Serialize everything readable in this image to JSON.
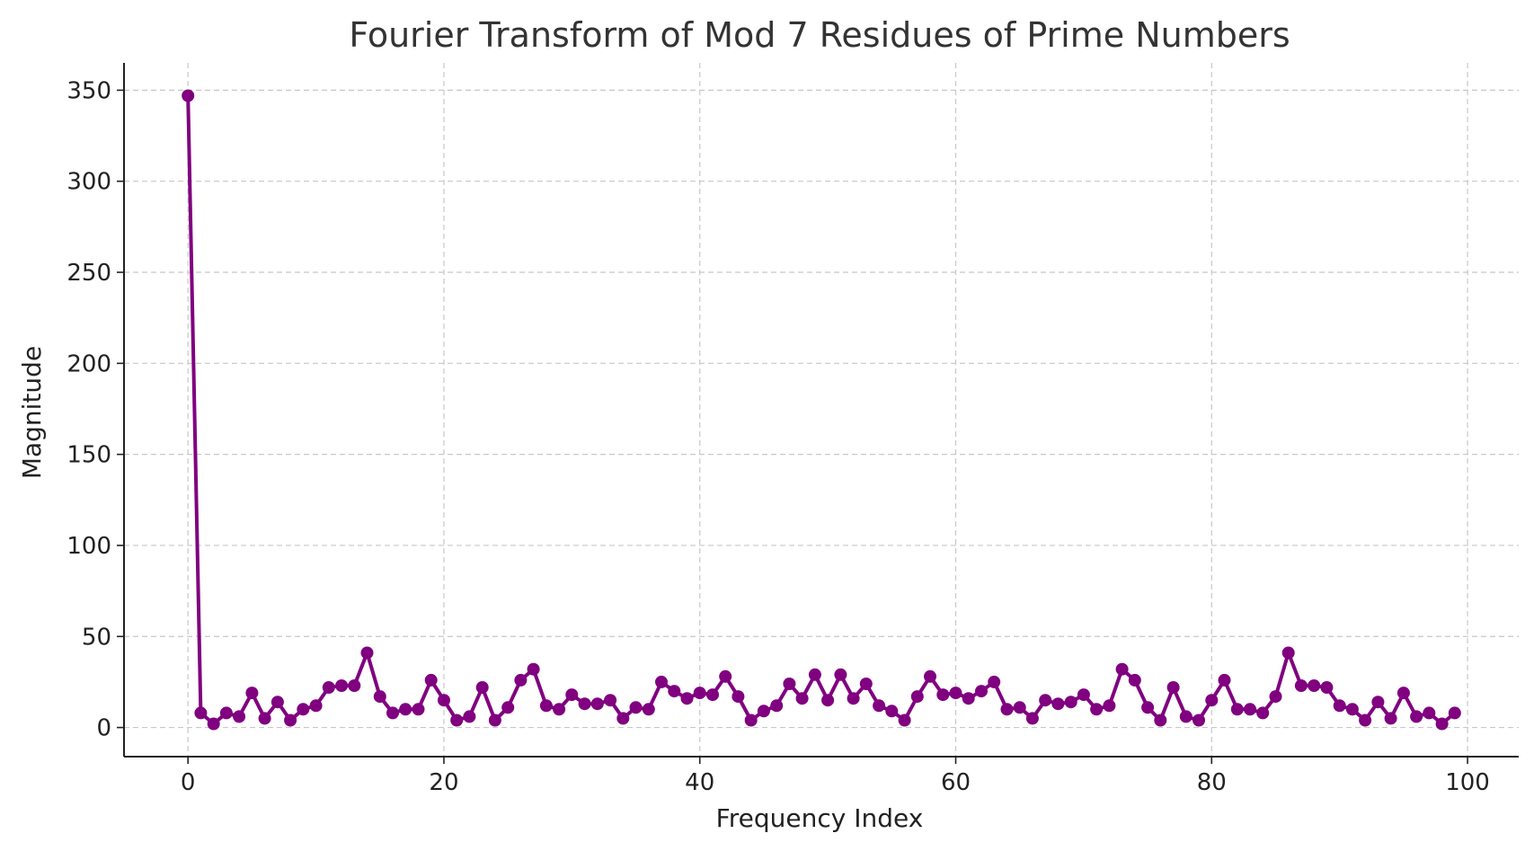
{
  "chart_data": {
    "type": "line",
    "title": "Fourier Transform of Mod 7 Residues of Prime Numbers",
    "xlabel": "Frequency Index",
    "ylabel": "Magnitude",
    "xlim": [
      -5,
      104
    ],
    "ylim": [
      -16,
      365
    ],
    "xticks": [
      0,
      20,
      40,
      60,
      80,
      100
    ],
    "yticks": [
      0,
      50,
      100,
      150,
      200,
      250,
      300,
      350
    ],
    "xtick_labels": [
      "0",
      "20",
      "40",
      "60",
      "80",
      100
    ],
    "ytick_labels": [
      "0",
      "50",
      "100",
      "150",
      "200",
      "250",
      "300",
      "350"
    ],
    "grid": true,
    "color": "#800080",
    "series": [
      {
        "x": [
          0,
          1,
          2,
          3,
          4,
          5,
          6,
          7,
          8,
          9,
          10,
          11,
          12,
          13,
          14,
          15,
          16,
          17,
          18,
          19,
          20,
          21,
          22,
          23,
          24,
          25,
          26,
          27,
          28,
          29,
          30,
          31,
          32,
          33,
          34,
          35,
          36,
          37,
          38,
          39,
          40,
          41,
          42,
          43,
          44,
          45,
          46,
          47,
          48,
          49,
          50,
          51,
          52,
          53,
          54,
          55,
          56,
          57,
          58,
          59,
          60,
          61,
          62,
          63,
          64,
          65,
          66,
          67,
          68,
          69,
          70,
          71,
          72,
          73,
          74,
          75,
          76,
          77,
          78,
          79,
          80,
          81,
          82,
          83,
          84,
          85,
          86,
          87,
          88,
          89,
          90,
          91,
          92,
          93,
          94,
          95,
          96,
          97,
          98,
          99
        ],
        "values": [
          347,
          8,
          2,
          8,
          6,
          19,
          5,
          14,
          4,
          10,
          12,
          22,
          23,
          23,
          41,
          17,
          8,
          10,
          10,
          26,
          15,
          4,
          6,
          22,
          4,
          11,
          26,
          32,
          12,
          10,
          18,
          13,
          13,
          15,
          5,
          11,
          10,
          25,
          20,
          16,
          19,
          18,
          28,
          17,
          4,
          9,
          12,
          24,
          16,
          29,
          15,
          29,
          16,
          24,
          12,
          9,
          4,
          17,
          28,
          18,
          19,
          16,
          20,
          25,
          10,
          11,
          5,
          15,
          13,
          14,
          18,
          10,
          12,
          32,
          26,
          11,
          4,
          22,
          6,
          4,
          15,
          26,
          10,
          10,
          8,
          17,
          41,
          23,
          23,
          22,
          12,
          10,
          4,
          14,
          5,
          19,
          6,
          8,
          2,
          8
        ]
      }
    ]
  }
}
